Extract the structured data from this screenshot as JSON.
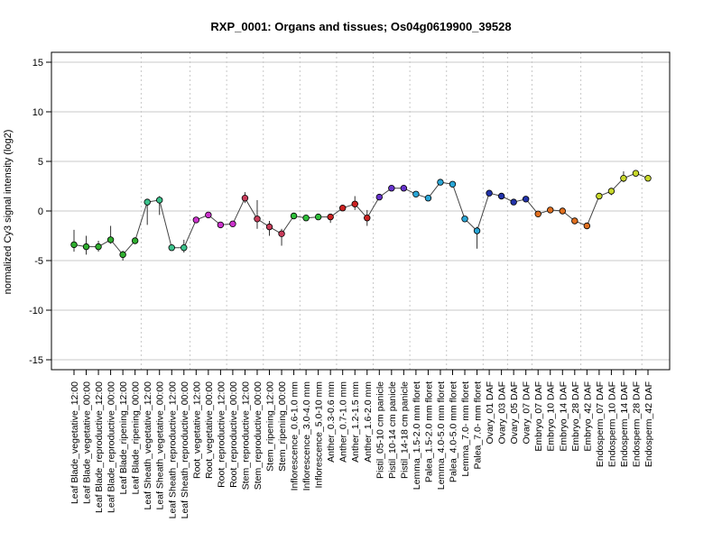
{
  "chart_data": {
    "type": "line",
    "title": "RXP_0001: Organs and tissues; Os04g0619900_39528",
    "ylabel": "normalized Cy3 signal intensity (log2)",
    "xlabel": "",
    "ylim": [
      -16,
      16
    ],
    "yticks": [
      -15,
      -10,
      -5,
      0,
      5,
      10,
      15
    ],
    "hgrid": [
      -15,
      -10,
      -5,
      0,
      5,
      10,
      15
    ],
    "group_separators_after_index": [
      5,
      9,
      12,
      15,
      18,
      21,
      24,
      27,
      30,
      33,
      35,
      37,
      41,
      46
    ],
    "categories": [
      "Leaf Blade_vegetative_12:00",
      "Leaf Blade_vegetative_00:00",
      "Leaf Blade_reproductive_12:00",
      "Leaf Blade_reproductive_00:00",
      "Leaf Blade_ripening_12:00",
      "Leaf Blade_ripening_00:00",
      "Leaf Sheath_vegetative_12:00",
      "Leaf Sheath_vegetative_00:00",
      "Leaf Sheath_reproductive_12:00",
      "Leaf Sheath_reproductive_00:00",
      "Root_vegetative_12:00",
      "Root_vegetative_00:00",
      "Root_reproductive_12:00",
      "Root_reproductive_00:00",
      "Stem_reproductive_12:00",
      "Stem_reproductive_00:00",
      "Stem_ripening_12:00",
      "Stem_ripening_00:00",
      "Inflorescence_0.6-1.0 mm",
      "Inflorescence_3.0-4.0 mm",
      "Inflorescence_5.0-10 mm",
      "Anther_0.3-0.6 mm",
      "Anther_0.7-1.0 mm",
      "Anther_1.2-1.5 mm",
      "Anther_1.6-2.0 mm",
      "Pistil_05-10 cm panicle",
      "Pistil_10-14 cm panicle",
      "Pistil_14-18 cm panicle",
      "Lemma_1.5-2.0 mm floret",
      "Palea_1.5-2.0 mm floret",
      "Lemma_4.0-5.0 mm floret",
      "Palea_4.0-5.0 mm floret",
      "Lemma_7.0- mm floret",
      "Palea_7.0- mm floret",
      "Ovary_01 DAF",
      "Ovary_03 DAF",
      "Ovary_05 DAF",
      "Ovary_07 DAF",
      "Embryo_07 DAF",
      "Embryo_10 DAF",
      "Embryo_14 DAF",
      "Embryo_28 DAF",
      "Embryo_42 DAF",
      "Endosperm_07 DAF",
      "Endosperm_10 DAF",
      "Endosperm_14 DAF",
      "Endosperm_28 DAF",
      "Endosperm_42 DAF"
    ],
    "values": [
      -3.4,
      -3.6,
      -3.6,
      -2.9,
      -4.4,
      -3.0,
      0.9,
      1.1,
      -3.7,
      -3.7,
      -0.9,
      -0.4,
      -1.4,
      -1.3,
      1.3,
      -0.8,
      -1.6,
      -2.3,
      -0.5,
      -0.7,
      -0.6,
      -0.6,
      0.3,
      0.7,
      -0.7,
      1.4,
      2.3,
      2.3,
      1.7,
      1.3,
      2.9,
      2.7,
      -0.8,
      -2.0,
      1.8,
      1.5,
      0.9,
      1.2,
      -0.3,
      0.1,
      0.0,
      -1.0,
      -1.5,
      1.5,
      2.0,
      3.3,
      3.8,
      3.3
    ],
    "error_low": [
      -4.1,
      -4.4,
      -4.1,
      -3.3,
      -5.0,
      -3.0,
      -1.4,
      -0.4,
      -3.7,
      -4.2,
      -0.9,
      -0.4,
      -1.4,
      -1.3,
      0.8,
      -1.8,
      -2.5,
      -3.5,
      -0.5,
      -0.7,
      -0.8,
      -1.2,
      0.1,
      0.1,
      -1.5,
      1.4,
      2.3,
      2.3,
      1.7,
      1.3,
      2.9,
      2.7,
      -0.8,
      -3.8,
      1.8,
      1.5,
      0.9,
      1.2,
      -0.5,
      -0.1,
      -0.2,
      -1.3,
      -1.5,
      1.5,
      1.6,
      2.9,
      3.5,
      3.3
    ],
    "error_high": [
      -1.9,
      -2.5,
      -3.0,
      -1.5,
      -4.0,
      -2.7,
      1.2,
      1.5,
      -3.7,
      -2.9,
      -0.9,
      -0.4,
      -1.4,
      -1.3,
      1.9,
      1.1,
      -1.0,
      -1.8,
      -0.5,
      -0.7,
      -0.4,
      -0.5,
      0.6,
      1.5,
      0.1,
      1.4,
      2.3,
      2.3,
      1.7,
      1.3,
      2.9,
      2.7,
      -0.8,
      -1.6,
      1.8,
      1.5,
      0.9,
      1.2,
      -0.1,
      0.3,
      0.2,
      -0.7,
      -1.5,
      1.5,
      2.3,
      4.0,
      4.1,
      3.3
    ],
    "point_colors": [
      "#2fae2f",
      "#2fae2f",
      "#2fae2f",
      "#2fae2f",
      "#2fae2f",
      "#2fae2f",
      "#3cc28c",
      "#3cc28c",
      "#3cc28c",
      "#3cc28c",
      "#cc33cc",
      "#cc33cc",
      "#cc33cc",
      "#cc33cc",
      "#c83c5a",
      "#c83c5a",
      "#c83c5a",
      "#c83c5a",
      "#2fbf3a",
      "#2fbf3a",
      "#2fbf3a",
      "#cc2222",
      "#cc2222",
      "#cc2222",
      "#cc2222",
      "#6633cc",
      "#6633cc",
      "#6633cc",
      "#2aa6d6",
      "#2aa6d6",
      "#2aa6d6",
      "#2aa6d6",
      "#2aa6d6",
      "#2aa6d6",
      "#2233aa",
      "#2233aa",
      "#2233aa",
      "#2233aa",
      "#e07020",
      "#e07020",
      "#e07020",
      "#e07020",
      "#e07020",
      "#c8d82a",
      "#c8d82a",
      "#c8d82a",
      "#c8d82a",
      "#c8d82a"
    ],
    "line_color": "#444444",
    "legend": "none",
    "grid": true
  }
}
